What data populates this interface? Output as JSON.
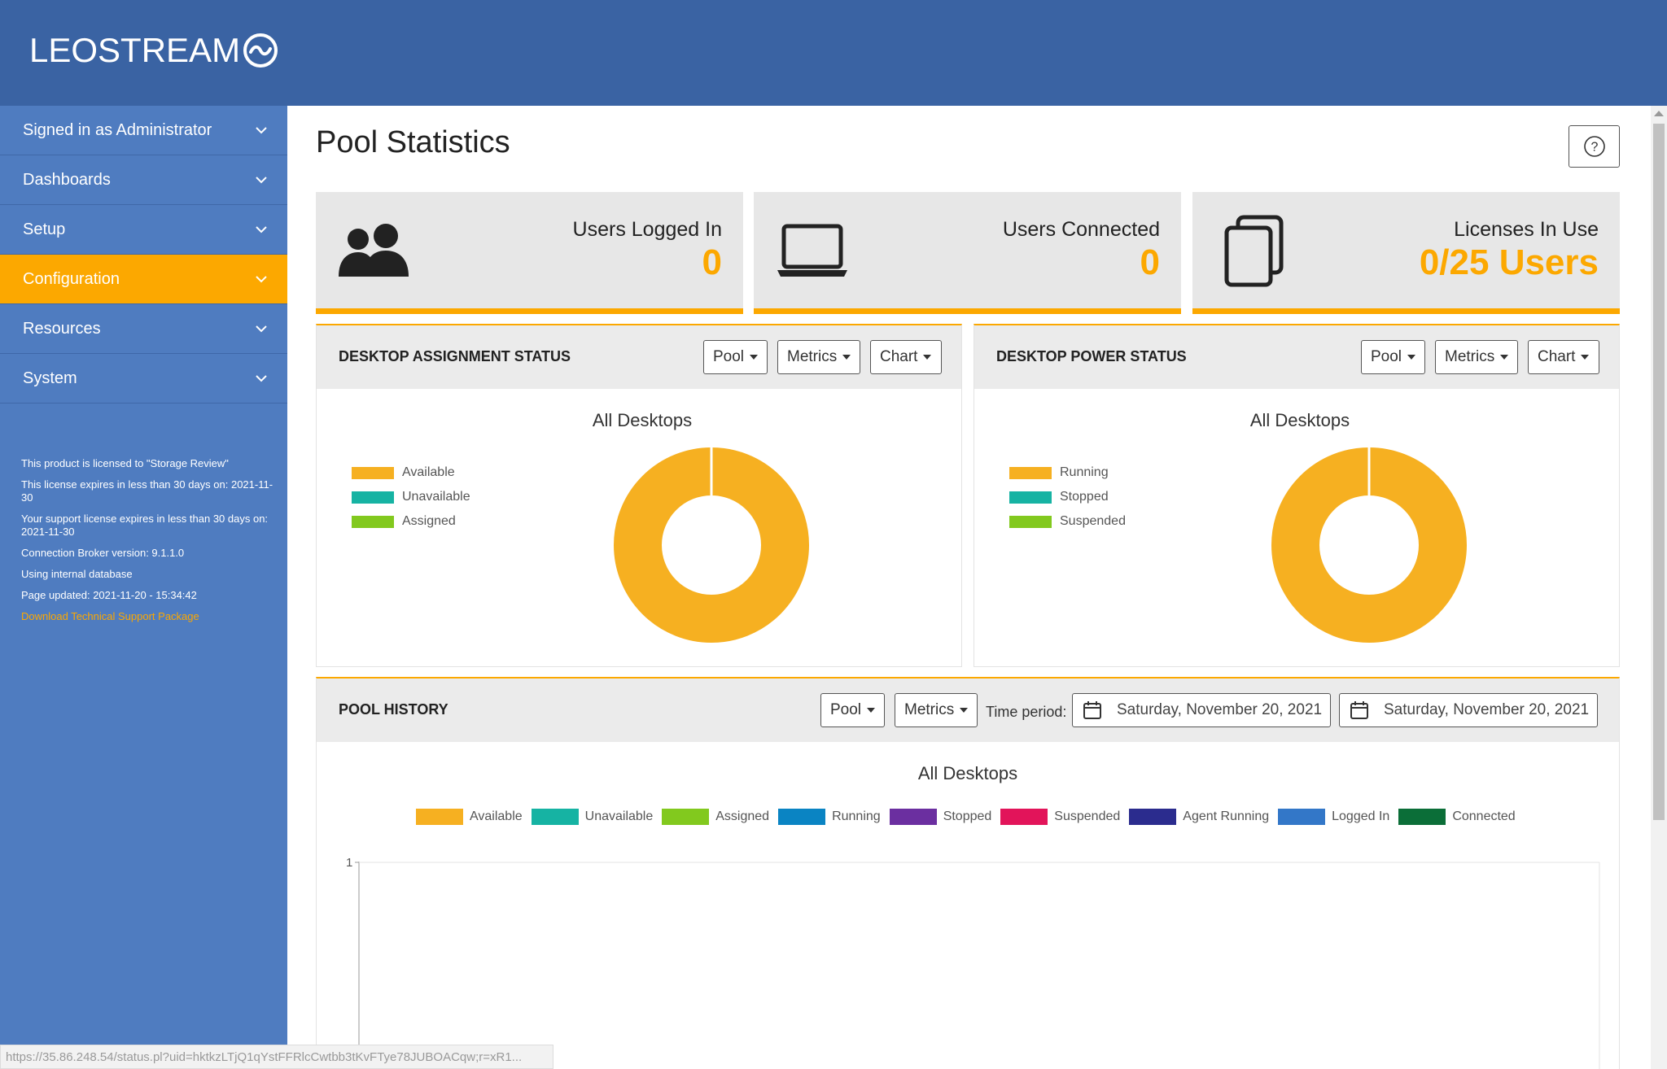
{
  "brand": {
    "name": "LEOSTREAM"
  },
  "sidebar": {
    "items": [
      {
        "label": "Signed in as Administrator",
        "active": false
      },
      {
        "label": "Dashboards",
        "active": false
      },
      {
        "label": "Setup",
        "active": false
      },
      {
        "label": "Configuration",
        "active": true
      },
      {
        "label": "Resources",
        "active": false
      },
      {
        "label": "System",
        "active": false
      }
    ],
    "info": {
      "licensed_to": "This product is licensed to \"Storage Review\"",
      "license_expiry": "This license expires in less than 30 days on: 2021-11-30",
      "support_expiry": "Your support license expires in less than 30 days on: 2021-11-30",
      "version": "Connection Broker version: 9.1.1.0",
      "database": "Using internal database",
      "page_updated": "Page updated: 2021-11-20 - 15:34:42",
      "download_link": "Download Technical Support Package"
    }
  },
  "page": {
    "title": "Pool Statistics",
    "help_label": "?"
  },
  "stats": [
    {
      "label": "Users Logged In",
      "value": "0",
      "icon": "users-icon"
    },
    {
      "label": "Users Connected",
      "value": "0",
      "icon": "laptop-icon"
    },
    {
      "label": "Licenses In Use",
      "value": "0/25 Users",
      "icon": "copy-icon"
    }
  ],
  "assignment": {
    "title": "DESKTOP ASSIGNMENT STATUS",
    "dropdowns": {
      "pool": "Pool",
      "metrics": "Metrics",
      "chart": "Chart"
    },
    "chart_title": "All Desktops",
    "legend": [
      {
        "label": "Available",
        "color": "#f6b021"
      },
      {
        "label": "Unavailable",
        "color": "#16b3a3"
      },
      {
        "label": "Assigned",
        "color": "#82c91e"
      }
    ]
  },
  "power": {
    "title": "DESKTOP POWER STATUS",
    "dropdowns": {
      "pool": "Pool",
      "metrics": "Metrics",
      "chart": "Chart"
    },
    "chart_title": "All Desktops",
    "legend": [
      {
        "label": "Running",
        "color": "#f6b021"
      },
      {
        "label": "Stopped",
        "color": "#16b3a3"
      },
      {
        "label": "Suspended",
        "color": "#82c91e"
      }
    ]
  },
  "history": {
    "title": "POOL HISTORY",
    "dropdowns": {
      "pool": "Pool",
      "metrics": "Metrics"
    },
    "time_period_label": "Time period:",
    "start_date": "Saturday, November 20, 2021",
    "end_date": "Saturday, November 20, 2021",
    "chart_title": "All Desktops",
    "legend": [
      {
        "label": "Available",
        "color": "#f6b021"
      },
      {
        "label": "Unavailable",
        "color": "#16b3a3"
      },
      {
        "label": "Assigned",
        "color": "#82c91e"
      },
      {
        "label": "Running",
        "color": "#0a84c3"
      },
      {
        "label": "Stopped",
        "color": "#6b2fa0"
      },
      {
        "label": "Suspended",
        "color": "#e2145a"
      },
      {
        "label": "Agent Running",
        "color": "#2b2c8e"
      },
      {
        "label": "Logged In",
        "color": "#3377c8"
      },
      {
        "label": "Connected",
        "color": "#0b6e38"
      }
    ],
    "y_tick": "1"
  },
  "chart_data": [
    {
      "type": "pie",
      "title": "All Desktops",
      "categories": [
        "Available",
        "Unavailable",
        "Assigned"
      ],
      "values": [
        1,
        0,
        0
      ]
    },
    {
      "type": "pie",
      "title": "All Desktops",
      "categories": [
        "Running",
        "Stopped",
        "Suspended"
      ],
      "values": [
        1,
        0,
        0
      ]
    },
    {
      "type": "line",
      "title": "All Desktops",
      "series": [
        {
          "name": "Available",
          "values": []
        },
        {
          "name": "Unavailable",
          "values": []
        },
        {
          "name": "Assigned",
          "values": []
        },
        {
          "name": "Running",
          "values": []
        },
        {
          "name": "Stopped",
          "values": []
        },
        {
          "name": "Suspended",
          "values": []
        },
        {
          "name": "Agent Running",
          "values": []
        },
        {
          "name": "Logged In",
          "values": []
        },
        {
          "name": "Connected",
          "values": []
        }
      ],
      "y_ticks": [
        "1"
      ]
    }
  ],
  "status_bar": {
    "url": "https://35.86.248.54/status.pl?uid=hktkzLTjQ1qYstFFRlcCwtbb3tKvFTye78JUBOACqw;r=xR1..."
  }
}
